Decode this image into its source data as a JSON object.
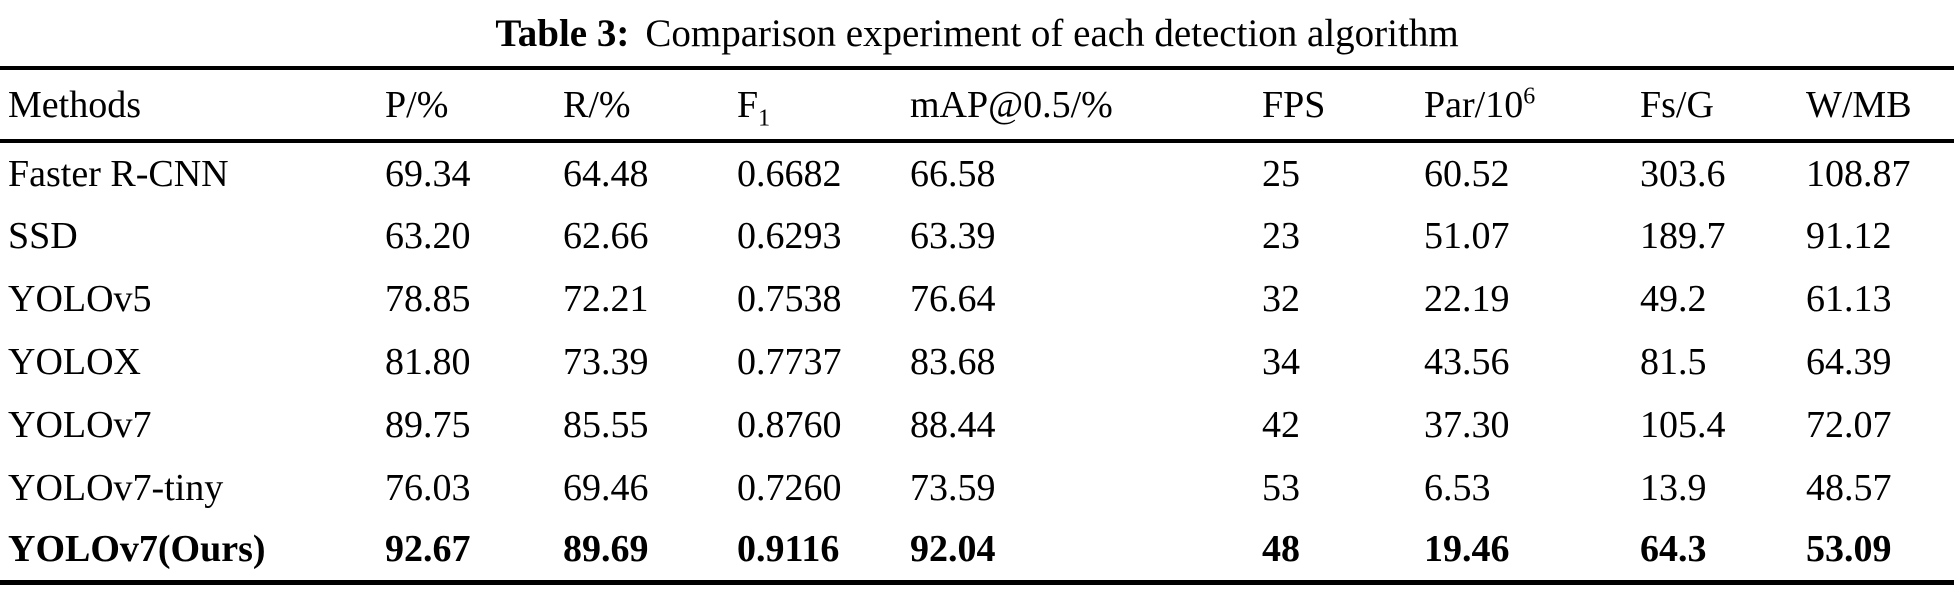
{
  "caption": {
    "label": "Table 3:",
    "text": "Comparison experiment of each detection algorithm"
  },
  "table": {
    "columns": [
      {
        "label": "Methods"
      },
      {
        "label": "P/%"
      },
      {
        "label": "R/%"
      },
      {
        "label": "F",
        "sub": "1"
      },
      {
        "label": "mAP@0.5/%"
      },
      {
        "label": "FPS"
      },
      {
        "label": "Par/10",
        "sup": "6"
      },
      {
        "label": "Fs/G"
      },
      {
        "label": "W/MB"
      }
    ],
    "rows": [
      {
        "method": "Faster R-CNN",
        "values": [
          "69.34",
          "64.48",
          "0.6682",
          "66.58",
          "25",
          "60.52",
          "303.6",
          "108.87"
        ],
        "bold": false
      },
      {
        "method": "SSD",
        "values": [
          "63.20",
          "62.66",
          "0.6293",
          "63.39",
          "23",
          "51.07",
          "189.7",
          "91.12"
        ],
        "bold": false
      },
      {
        "method": "YOLOv5",
        "values": [
          "78.85",
          "72.21",
          "0.7538",
          "76.64",
          "32",
          "22.19",
          "49.2",
          "61.13"
        ],
        "bold": false
      },
      {
        "method": "YOLOX",
        "values": [
          "81.80",
          "73.39",
          "0.7737",
          "83.68",
          "34",
          "43.56",
          "81.5",
          "64.39"
        ],
        "bold": false
      },
      {
        "method": "YOLOv7",
        "values": [
          "89.75",
          "85.55",
          "0.8760",
          "88.44",
          "42",
          "37.30",
          "105.4",
          "72.07"
        ],
        "bold": false
      },
      {
        "method": "YOLOv7-tiny",
        "values": [
          "76.03",
          "69.46",
          "0.7260",
          "73.59",
          "53",
          "6.53",
          "13.9",
          "48.57"
        ],
        "bold": false
      },
      {
        "method": "YOLOv7(Ours)",
        "values": [
          "92.67",
          "89.69",
          "0.9116",
          "92.04",
          "48",
          "19.46",
          "64.3",
          "53.09"
        ],
        "bold": true
      }
    ]
  },
  "colors": {
    "text": "#000000",
    "background": "#ffffff",
    "rule": "#000000"
  }
}
